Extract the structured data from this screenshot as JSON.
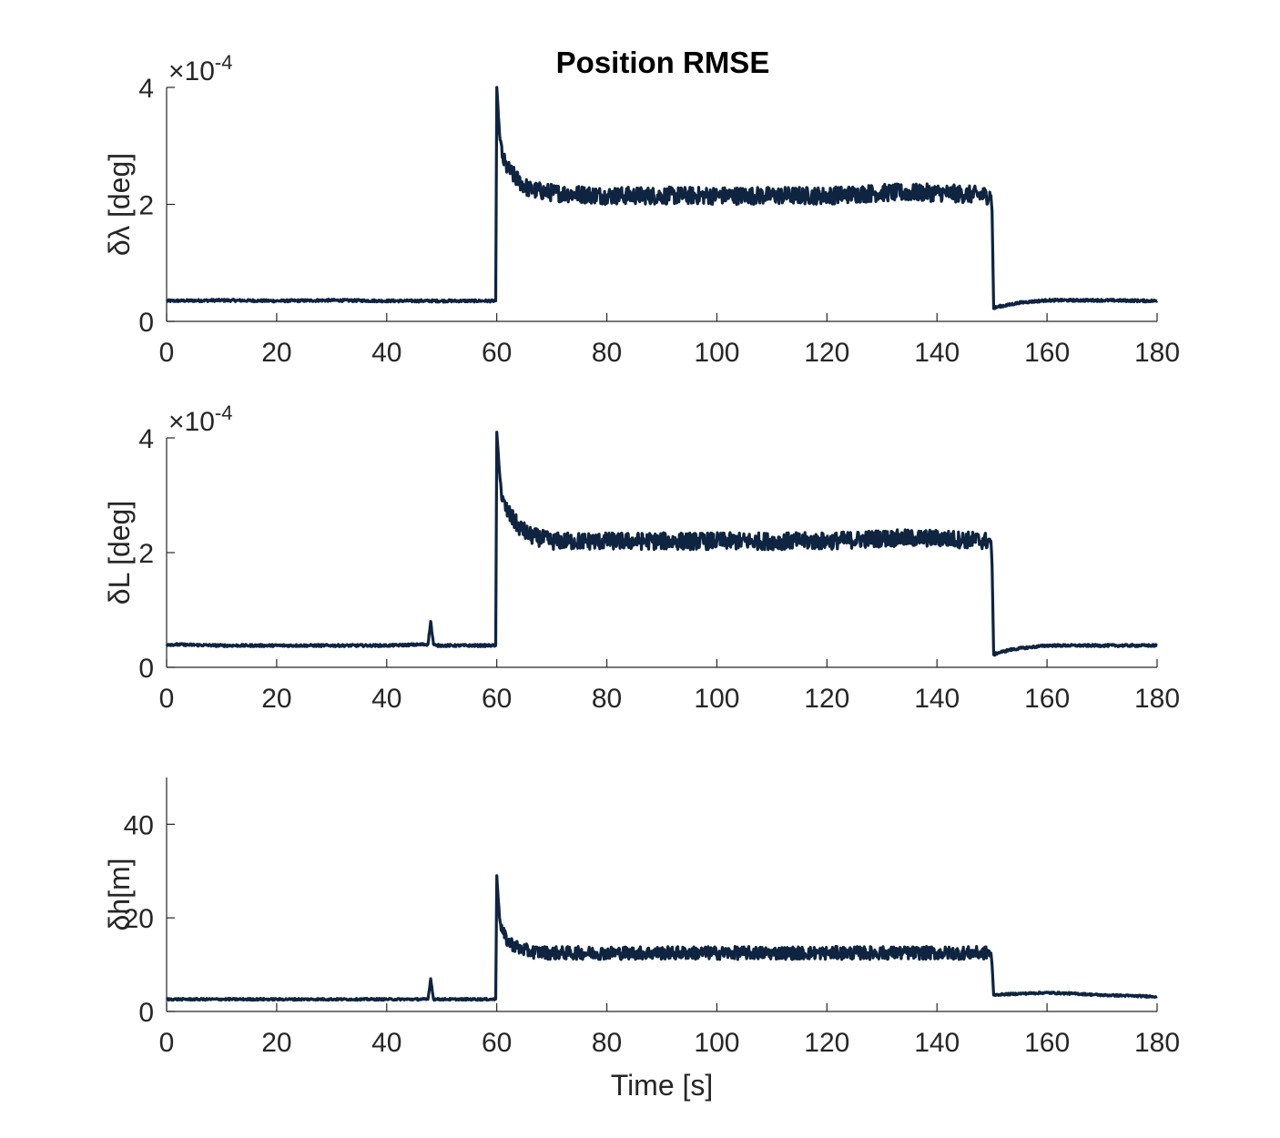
{
  "figure": {
    "title": "Position RMSE"
  },
  "colors": {
    "series": "#0e2440",
    "axis": "#262626",
    "background": "#ffffff"
  },
  "chart_data": [
    {
      "type": "line",
      "title": "Position RMSE",
      "xlabel": "",
      "ylabel": "δλ [deg]",
      "exponent_base": "×10",
      "exponent_power": "-4",
      "xlim": [
        0,
        180
      ],
      "ylim": [
        0,
        4
      ],
      "xticks": [
        "0",
        "20",
        "40",
        "60",
        "80",
        "100",
        "120",
        "140",
        "160",
        "180"
      ],
      "yticks": [
        "0",
        "2",
        "4"
      ],
      "grid": false,
      "series": [
        {
          "x": [
            0,
            10,
            20,
            30,
            40,
            50,
            59.8,
            60,
            60.5,
            61,
            62,
            64,
            66,
            70,
            80,
            90,
            100,
            110,
            120,
            130,
            140,
            149.8,
            150,
            150.3,
            151,
            153,
            155,
            160,
            170,
            180
          ],
          "y": [
            0.35,
            0.36,
            0.35,
            0.36,
            0.35,
            0.35,
            0.35,
            4.0,
            3.2,
            2.8,
            2.6,
            2.4,
            2.25,
            2.2,
            2.15,
            2.15,
            2.15,
            2.15,
            2.15,
            2.2,
            2.2,
            2.15,
            1.9,
            0.22,
            0.25,
            0.28,
            0.32,
            0.36,
            0.36,
            0.35
          ],
          "noise": [
            0.02,
            0.15
          ]
        }
      ]
    },
    {
      "type": "line",
      "xlabel": "",
      "ylabel": "δL [deg]",
      "exponent_base": "×10",
      "exponent_power": "-4",
      "xlim": [
        0,
        180
      ],
      "ylim": [
        0,
        4
      ],
      "xticks": [
        "0",
        "20",
        "40",
        "60",
        "80",
        "100",
        "120",
        "140",
        "160",
        "180"
      ],
      "yticks": [
        "0",
        "2",
        "4"
      ],
      "grid": false,
      "series": [
        {
          "x": [
            0,
            10,
            20,
            30,
            40,
            47.5,
            48,
            48.5,
            49,
            50,
            59.8,
            60,
            60.5,
            61,
            62,
            64,
            66,
            70,
            80,
            90,
            100,
            110,
            120,
            130,
            140,
            149.8,
            150,
            150.3,
            151,
            153,
            155,
            160,
            170,
            180
          ],
          "y": [
            0.4,
            0.38,
            0.38,
            0.38,
            0.38,
            0.4,
            0.8,
            0.4,
            0.38,
            0.38,
            0.38,
            4.1,
            3.4,
            2.9,
            2.7,
            2.45,
            2.3,
            2.2,
            2.2,
            2.2,
            2.2,
            2.2,
            2.2,
            2.25,
            2.25,
            2.2,
            1.8,
            0.22,
            0.25,
            0.3,
            0.33,
            0.38,
            0.38,
            0.38
          ],
          "noise": [
            0.02,
            0.15
          ]
        }
      ]
    },
    {
      "type": "line",
      "xlabel": "Time [s]",
      "ylabel": "δh[m]",
      "xlim": [
        0,
        180
      ],
      "ylim": [
        0,
        50
      ],
      "xticks": [
        "0",
        "20",
        "40",
        "60",
        "80",
        "100",
        "120",
        "140",
        "160",
        "180"
      ],
      "yticks": [
        "0",
        "20",
        "40"
      ],
      "grid": false,
      "series": [
        {
          "x": [
            0,
            10,
            20,
            30,
            40,
            47.5,
            48,
            48.5,
            49,
            50,
            59.8,
            60,
            60.5,
            61,
            62,
            64,
            66,
            70,
            80,
            90,
            100,
            110,
            120,
            130,
            140,
            149.8,
            150,
            150.3,
            151,
            155,
            160,
            165,
            170,
            180
          ],
          "y": [
            2.6,
            2.6,
            2.6,
            2.6,
            2.6,
            2.6,
            7.0,
            2.6,
            2.6,
            2.6,
            2.6,
            29,
            20,
            17,
            15,
            13.5,
            12.8,
            12.5,
            12.5,
            12.5,
            12.5,
            12.5,
            12.5,
            12.5,
            12.5,
            12.5,
            10,
            3.5,
            3.6,
            3.8,
            4.0,
            3.8,
            3.5,
            3.2
          ],
          "noise": [
            0.2,
            1.4
          ]
        }
      ]
    }
  ]
}
